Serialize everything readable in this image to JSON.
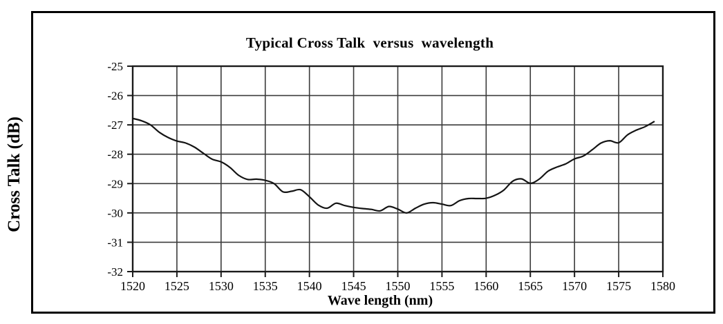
{
  "figure": {
    "border_color": "#000000",
    "background_color": "#ffffff"
  },
  "chart_data": {
    "type": "line",
    "title": "Typical Cross Talk  versus  wavelength",
    "xlabel": "Wave length (nm)",
    "ylabel": "Cross Talk (dB)",
    "xlim": [
      1520,
      1580
    ],
    "ylim": [
      -32,
      -25
    ],
    "x_ticks": [
      1520,
      1525,
      1530,
      1535,
      1540,
      1545,
      1550,
      1555,
      1560,
      1565,
      1570,
      1575,
      1580
    ],
    "y_ticks": [
      -25,
      -26,
      -27,
      -28,
      -29,
      -30,
      -31,
      -32
    ],
    "grid": true,
    "legend": "none",
    "colors": {
      "curve": "#141414",
      "grid": "#3a3a3a",
      "axis": "#1a1a1a",
      "text": "#000000",
      "background": "#ffffff"
    },
    "series": [
      {
        "name": "cross_talk_db",
        "x": [
          1520,
          1521,
          1522,
          1523,
          1524,
          1525,
          1526,
          1527,
          1528,
          1529,
          1530,
          1531,
          1532,
          1533,
          1534,
          1535,
          1536,
          1537,
          1538,
          1539,
          1540,
          1541,
          1542,
          1543,
          1544,
          1545,
          1546,
          1547,
          1548,
          1549,
          1550,
          1551,
          1552,
          1553,
          1554,
          1555,
          1556,
          1557,
          1558,
          1559,
          1560,
          1561,
          1562,
          1563,
          1564,
          1565,
          1566,
          1567,
          1568,
          1569,
          1570,
          1571,
          1572,
          1573,
          1574,
          1575,
          1576,
          1577,
          1578,
          1579
        ],
        "y": [
          -26.78,
          -26.86,
          -27.0,
          -27.25,
          -27.43,
          -27.55,
          -27.62,
          -27.76,
          -27.97,
          -28.17,
          -28.26,
          -28.45,
          -28.72,
          -28.86,
          -28.85,
          -28.89,
          -29.0,
          -29.28,
          -29.26,
          -29.21,
          -29.45,
          -29.73,
          -29.84,
          -29.67,
          -29.75,
          -29.81,
          -29.85,
          -29.88,
          -29.93,
          -29.78,
          -29.87,
          -30.0,
          -29.84,
          -29.7,
          -29.65,
          -29.7,
          -29.75,
          -29.58,
          -29.51,
          -29.51,
          -29.5,
          -29.4,
          -29.22,
          -28.92,
          -28.84,
          -28.99,
          -28.85,
          -28.58,
          -28.44,
          -28.33,
          -28.16,
          -28.06,
          -27.85,
          -27.62,
          -27.54,
          -27.61,
          -27.34,
          -27.18,
          -27.06,
          -26.89
        ]
      }
    ]
  }
}
